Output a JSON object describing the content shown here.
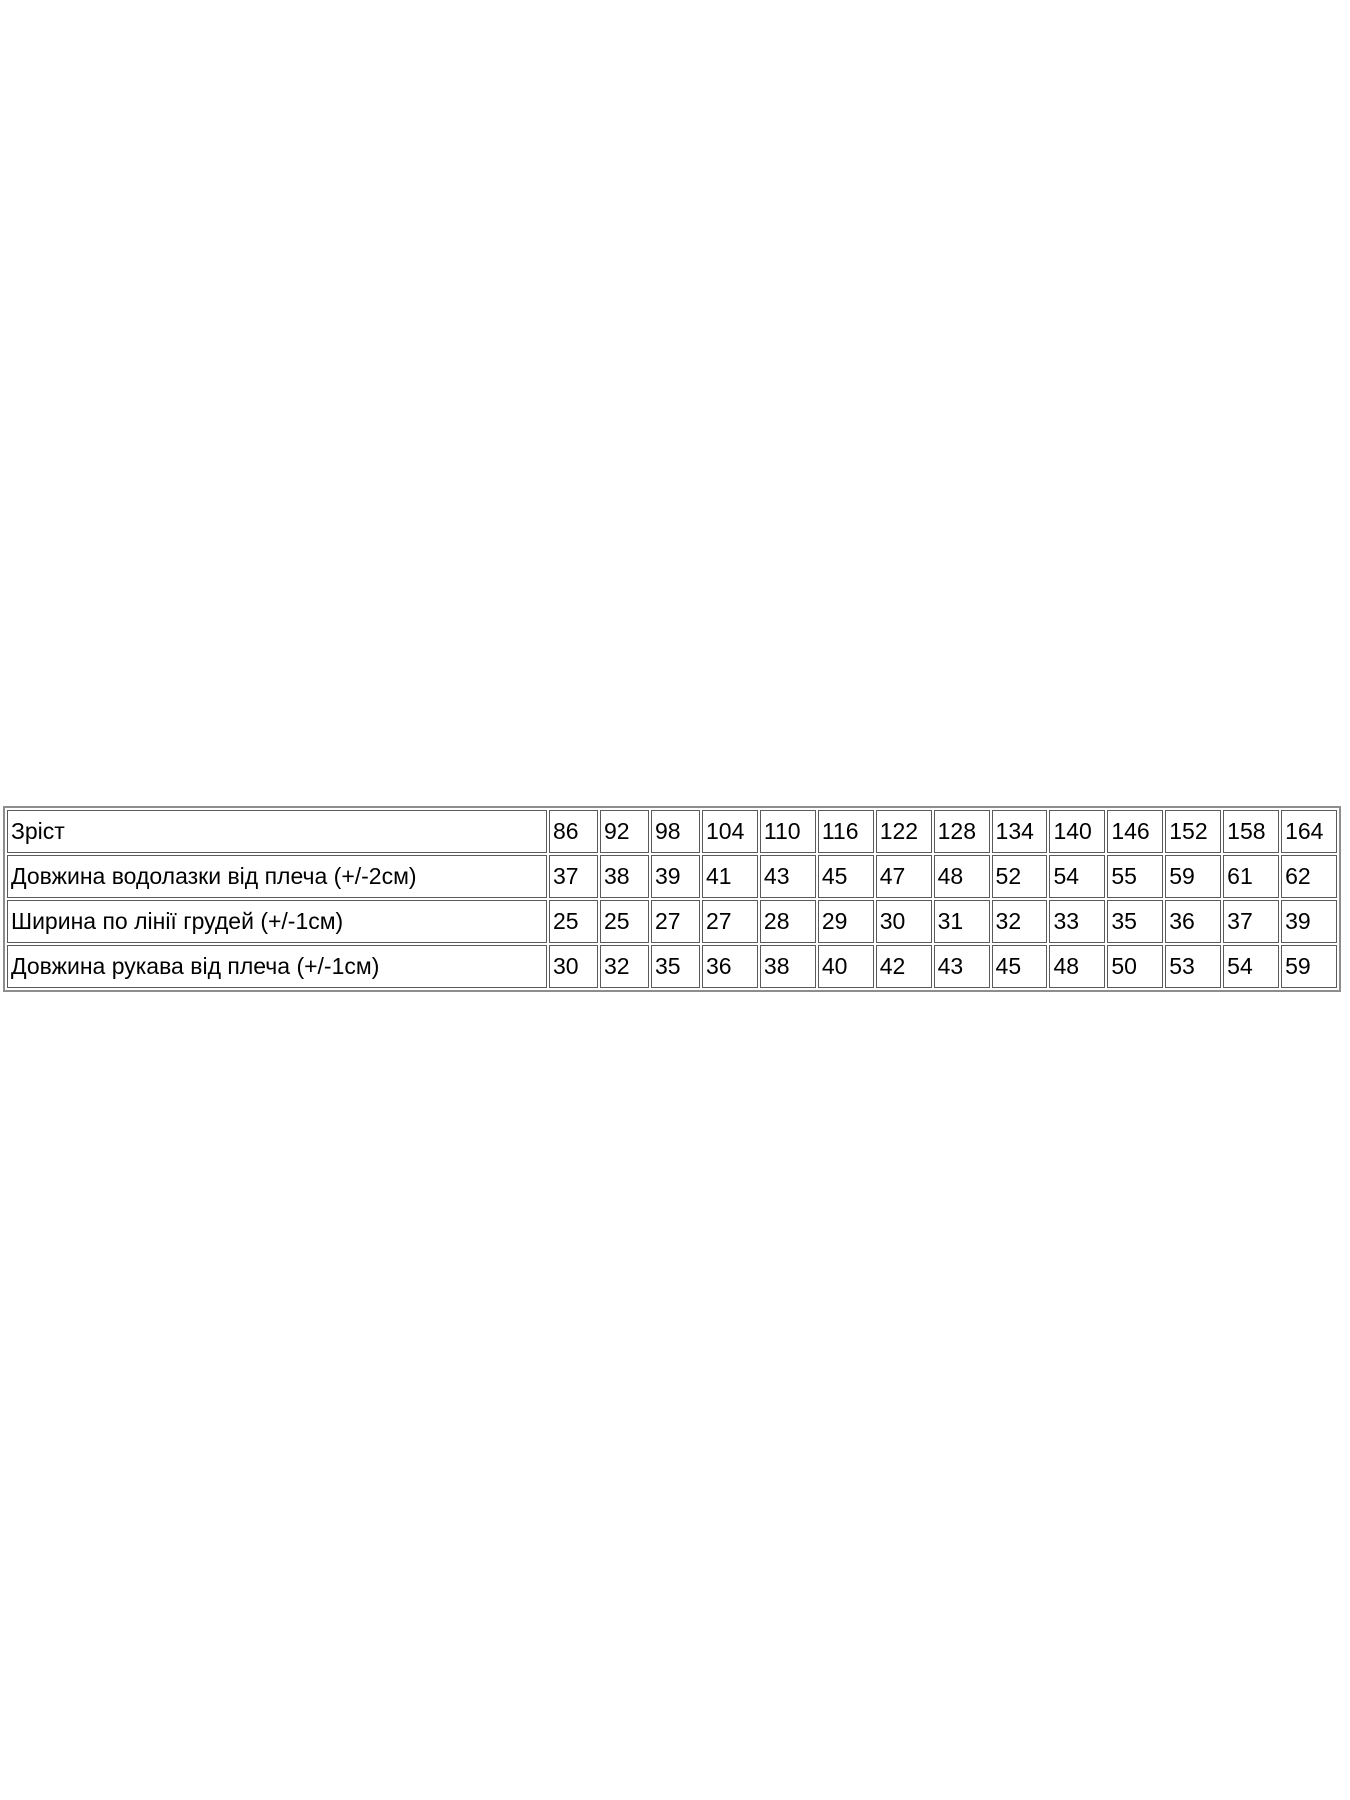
{
  "page": {
    "background_color": "#ffffff",
    "text_color": "#000000",
    "table_outer_border_color": "#8d8d8d",
    "table_cell_border_color": "#5a5a5a"
  },
  "size_table": {
    "header_row": {
      "label": "Зріст",
      "sizes": [
        "86",
        "92",
        "98",
        "104",
        "110",
        "116",
        "122",
        "128",
        "134",
        "140",
        "146",
        "152",
        "158",
        "164"
      ]
    },
    "measurement_rows": [
      {
        "label": "Довжина водолазки від плеча (+/-2см)",
        "values": [
          "37",
          "38",
          "39",
          "41",
          "43",
          "45",
          "47",
          "48",
          "52",
          "54",
          "55",
          "59",
          "61",
          "62"
        ]
      },
      {
        "label": "Ширина по лінії грудей (+/-1см)",
        "values": [
          "25",
          "25",
          "27",
          "27",
          "28",
          "29",
          "30",
          "31",
          "32",
          "33",
          "35",
          "36",
          "37",
          "39"
        ]
      },
      {
        "label": "Довжина рукава від плеча (+/-1см)",
        "values": [
          "30",
          "32",
          "35",
          "36",
          "38",
          "40",
          "42",
          "43",
          "45",
          "48",
          "50",
          "53",
          "54",
          "59"
        ]
      }
    ]
  },
  "chart_data": {
    "type": "table",
    "columns": [
      "86",
      "92",
      "98",
      "104",
      "110",
      "116",
      "122",
      "128",
      "134",
      "140",
      "146",
      "152",
      "158",
      "164"
    ],
    "rows": [
      {
        "name": "Зріст",
        "values": [
          86,
          92,
          98,
          104,
          110,
          116,
          122,
          128,
          134,
          140,
          146,
          152,
          158,
          164
        ]
      },
      {
        "name": "Довжина водолазки від плеча (+/-2см)",
        "values": [
          37,
          38,
          39,
          41,
          43,
          45,
          47,
          48,
          52,
          54,
          55,
          59,
          61,
          62
        ]
      },
      {
        "name": "Ширина по лінії грудей (+/-1см)",
        "values": [
          25,
          25,
          27,
          27,
          28,
          29,
          30,
          31,
          32,
          33,
          35,
          36,
          37,
          39
        ]
      },
      {
        "name": "Довжина рукава від плеча (+/-1см)",
        "values": [
          30,
          32,
          35,
          36,
          38,
          40,
          42,
          43,
          45,
          48,
          50,
          53,
          54,
          59
        ]
      }
    ]
  }
}
